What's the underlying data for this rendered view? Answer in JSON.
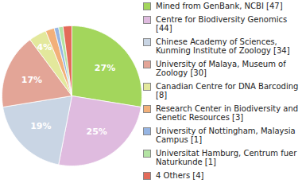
{
  "chart_data": {
    "type": "pie",
    "categories": [
      "Mined from GenBank, NCBI [47]",
      "Centre for Biodiversity Genomics [44]",
      "Chinese Academy of Sciences, Kunming Institute of Zoology [34]",
      "University of Malaya, Museum of Zoology [30]",
      "Canadian Centre for DNA Barcoding [8]",
      "Research Center in Biodiversity and Genetic Resources [3]",
      "University of Nottingham, Malaysia Campus [1]",
      "Universitat Hamburg, Centrum fuer Naturkunde [1]",
      "4 Others [4]"
    ],
    "values": [
      27,
      25,
      19,
      17,
      4,
      2,
      1,
      1,
      2
    ],
    "value_labels": [
      "27%",
      "25%",
      "19%",
      "17%",
      "4%",
      null,
      null,
      null,
      null
    ],
    "data_labels": true,
    "colors": [
      "#a3d65c",
      "#dfbbdf",
      "#c9d5e4",
      "#e3a597",
      "#e3e89c",
      "#f2b07a",
      "#96b5e3",
      "#b3e3a3",
      "#e36b5a"
    ]
  }
}
